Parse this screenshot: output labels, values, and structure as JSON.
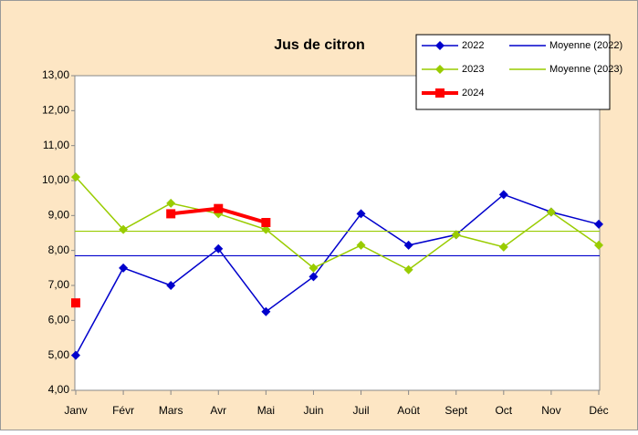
{
  "chart_data": {
    "type": "line",
    "title": "Jus de citron",
    "categories": [
      "Janv",
      "Févr",
      "Mars",
      "Avr",
      "Mai",
      "Juin",
      "Juil",
      "Août",
      "Sept",
      "Oct",
      "Nov",
      "Déc"
    ],
    "series": [
      {
        "name": "2022",
        "color": "#0000cc",
        "marker": "diamond",
        "values": [
          5.0,
          7.5,
          7.0,
          8.05,
          6.25,
          7.25,
          9.05,
          8.15,
          8.45,
          9.6,
          9.1,
          8.75
        ]
      },
      {
        "name": "Moyenne (2022)",
        "color": "#0000cc",
        "value": 7.85
      },
      {
        "name": "2023",
        "color": "#99cc00",
        "marker": "diamond",
        "values": [
          10.1,
          8.6,
          9.35,
          9.05,
          8.6,
          7.5,
          8.15,
          7.45,
          8.45,
          8.1,
          9.1,
          8.15
        ]
      },
      {
        "name": "Moyenne (2023)",
        "color": "#99cc00",
        "value": 8.55
      },
      {
        "name": "2024",
        "color": "#ff0000",
        "marker": "square",
        "line_width": 4,
        "values": [
          6.5,
          null,
          9.05,
          9.2,
          8.8,
          null,
          null,
          null,
          null,
          null,
          null,
          null
        ]
      }
    ],
    "ylim": [
      4,
      13
    ],
    "yticks": [
      {
        "value": 4,
        "label": "4,00"
      },
      {
        "value": 5,
        "label": "5,00"
      },
      {
        "value": 6,
        "label": "6,00"
      },
      {
        "value": 7,
        "label": "7,00"
      },
      {
        "value": 8,
        "label": "8,00"
      },
      {
        "value": 9,
        "label": "9,00"
      },
      {
        "value": 10,
        "label": "10,00"
      },
      {
        "value": 11,
        "label": "11,00"
      },
      {
        "value": 12,
        "label": "12,00"
      },
      {
        "value": 13,
        "label": "13,00"
      }
    ],
    "grid": false,
    "legend": "top-right"
  }
}
